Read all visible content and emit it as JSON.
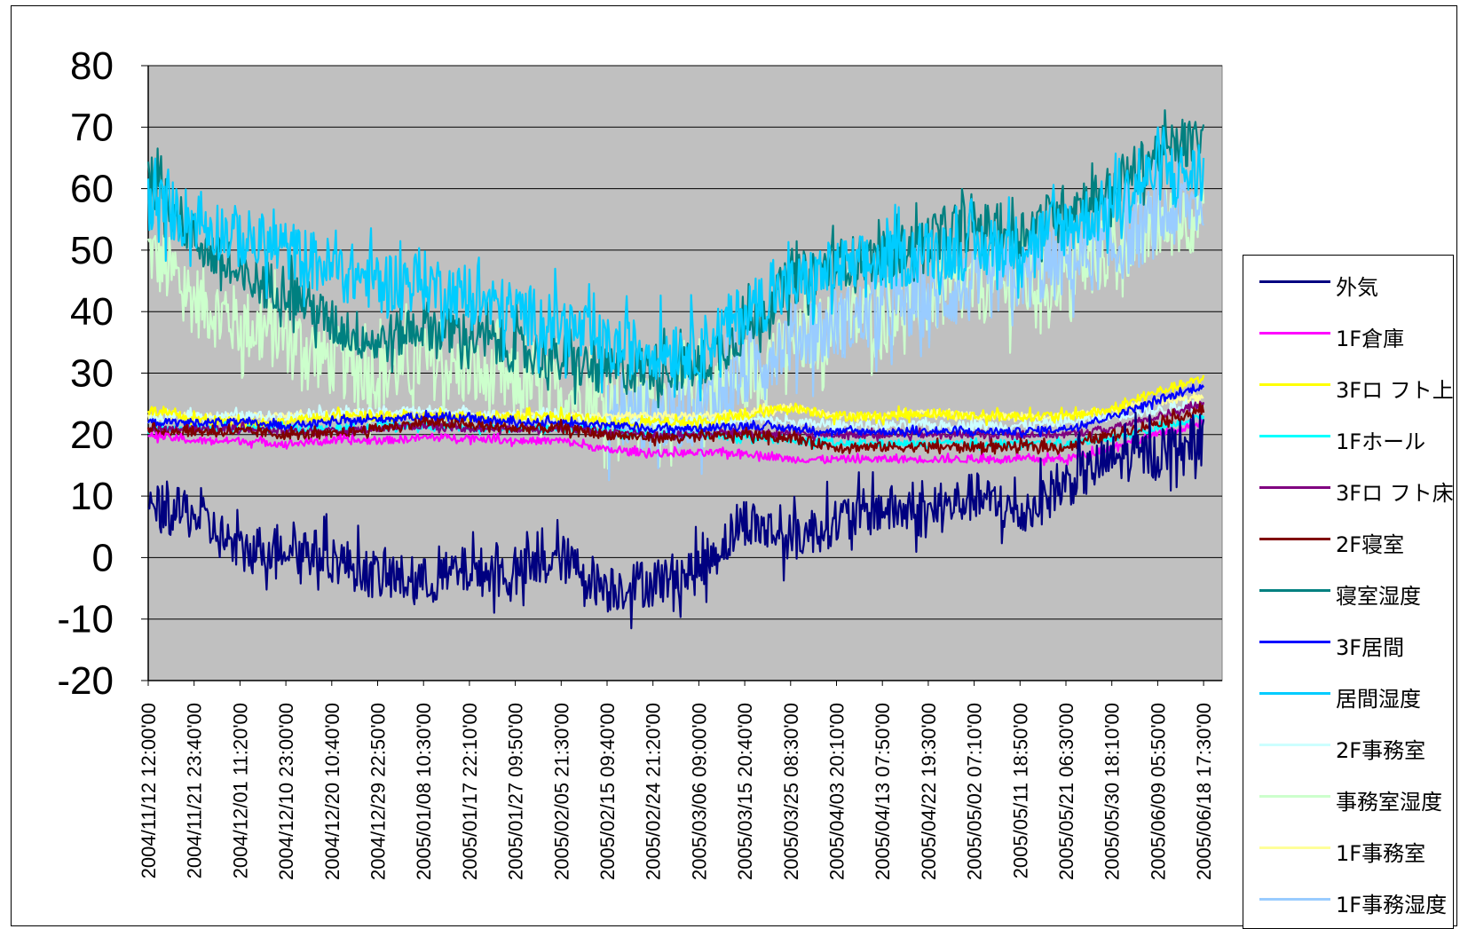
{
  "chart_data": {
    "type": "line",
    "title": "",
    "xlabel": "",
    "ylabel": "",
    "ylim": [
      -20,
      80
    ],
    "yticks": [
      80,
      70,
      60,
      50,
      40,
      30,
      20,
      10,
      0,
      -10,
      -20
    ],
    "grid": true,
    "legend_position": "right",
    "plot_background": "#c0c0c0",
    "x_tick_labels": [
      "2004/11/12 12:00'00",
      "2004/11/21 23:40'00",
      "2004/12/01 11:20'00",
      "2004/12/10 23:00'00",
      "2004/12/20 10:40'00",
      "2004/12/29 22:50'00",
      "2005/01/08 10:30'00",
      "2005/01/17 22:10'00",
      "2005/01/27 09:50'00",
      "2005/02/05 21:30'00",
      "2005/02/15 09:40'00",
      "2005/02/24 21:20'00",
      "2005/03/06 09:00'00",
      "2005/03/15 20:40'00",
      "2005/03/25 08:30'00",
      "2005/04/03 20:10'00",
      "2005/04/13 07:50'00",
      "2005/04/22 19:30'00",
      "2005/05/02 07:10'00",
      "2005/05/11 18:50'00",
      "2005/05/21 06:30'00",
      "2005/05/30 18:10'00",
      "2005/06/09 05:50'00",
      "2005/06/18 17:30'00"
    ],
    "series": [
      {
        "name": "外気",
        "color": "#000080",
        "noise": 4,
        "values": [
          8,
          7,
          1,
          2,
          0,
          -3,
          -4,
          -2,
          -3,
          0,
          -5,
          -4,
          -2,
          6,
          3,
          6,
          8,
          7,
          10,
          7,
          12,
          16,
          17,
          20
        ]
      },
      {
        "name": "1F倉庫",
        "color": "#ff00ff",
        "noise": 0.6,
        "values": [
          20,
          19,
          19,
          18.5,
          19,
          19,
          19.5,
          19.5,
          19,
          19,
          17.5,
          17,
          17,
          17,
          16,
          16,
          16,
          16,
          16,
          16,
          16,
          18,
          20,
          22
        ]
      },
      {
        "name": "3Fロフト上",
        "color": "#ffff00",
        "noise": 0.8,
        "values": [
          24,
          22.5,
          22,
          22,
          23,
          23,
          23,
          23,
          23,
          23,
          22,
          22,
          22,
          23,
          24.5,
          23,
          23,
          23.5,
          23,
          23,
          23,
          24,
          27,
          29
        ]
      },
      {
        "name": "1Fホール",
        "color": "#00ffff",
        "noise": 0.6,
        "values": [
          21,
          21,
          21,
          21,
          21,
          21.5,
          21.5,
          21,
          21,
          21,
          20.5,
          20,
          20,
          19.5,
          19,
          18.5,
          18.5,
          18.5,
          18.5,
          18.5,
          18.5,
          19.5,
          21,
          23
        ]
      },
      {
        "name": "3Fロフト床",
        "color": "#800080",
        "noise": 0.6,
        "values": [
          21,
          21,
          21,
          20.5,
          20.5,
          21,
          21.5,
          21,
          21,
          21,
          20.5,
          20,
          20,
          20.5,
          20,
          20,
          20,
          20,
          20,
          20,
          20,
          21,
          23,
          25
        ]
      },
      {
        "name": "2F寝室",
        "color": "#800000",
        "noise": 0.8,
        "values": [
          20.5,
          20.5,
          20.5,
          20,
          20,
          21,
          22,
          21.5,
          21,
          21,
          20,
          19.5,
          19.5,
          20,
          19.5,
          18,
          18,
          18,
          18,
          18,
          18,
          20,
          22,
          24
        ]
      },
      {
        "name": "寝室湿度",
        "color": "#008080",
        "noise": 4,
        "values": [
          62,
          52,
          45,
          44,
          38,
          35,
          38,
          36,
          34,
          32,
          30,
          31,
          31,
          37,
          45,
          48,
          49,
          52,
          54,
          53,
          57,
          60,
          66,
          68
        ]
      },
      {
        "name": "3F居間",
        "color": "#0000ff",
        "noise": 0.6,
        "values": [
          22,
          22,
          22,
          21.5,
          22,
          22.5,
          23,
          22.5,
          22,
          22,
          21.5,
          21,
          21,
          21.5,
          21,
          20.5,
          20.5,
          20.5,
          20.5,
          20.5,
          21,
          23,
          25.5,
          28
        ]
      },
      {
        "name": "居間湿度",
        "color": "#00ccff",
        "noise": 5,
        "values": [
          58,
          55,
          52,
          50,
          47,
          45,
          45,
          42,
          40,
          38,
          34,
          34,
          34,
          40,
          44,
          47,
          48,
          50,
          50,
          51,
          54,
          57,
          63,
          62
        ]
      },
      {
        "name": "2F事務室",
        "color": "#ccffff",
        "noise": 0.8,
        "values": [
          22.5,
          23,
          23,
          23,
          23.5,
          23.5,
          24,
          23.5,
          23,
          23,
          22,
          22,
          22,
          22.5,
          22,
          21.5,
          21.5,
          21.5,
          21.5,
          21.5,
          22,
          23,
          24,
          25
        ]
      },
      {
        "name": "事務室湿度",
        "color": "#ccffcc",
        "noise": 6,
        "values": [
          50,
          42,
          38,
          36,
          32,
          30,
          32,
          30,
          28,
          27,
          25,
          25,
          26,
          30,
          34,
          38,
          40,
          42,
          44,
          44,
          46,
          50,
          54,
          56
        ]
      },
      {
        "name": "1F事務室",
        "color": "#ffff99",
        "noise": 0.6,
        "values": [
          23,
          23,
          23,
          23,
          23,
          23,
          23,
          23,
          23,
          23,
          23,
          23,
          23,
          23.5,
          24.5,
          23,
          23,
          23.5,
          23,
          23,
          23,
          24,
          25.5,
          26
        ]
      },
      {
        "name": "1F事務湿度",
        "color": "#99ccff",
        "noise": 6,
        "values": [
          null,
          null,
          null,
          null,
          null,
          null,
          null,
          null,
          null,
          null,
          23,
          23,
          24,
          30,
          36,
          38,
          40,
          42,
          44,
          46,
          48,
          50,
          55,
          58
        ]
      }
    ]
  },
  "legend_items": [
    {
      "label": "外気",
      "color": "#000080"
    },
    {
      "label": "1F倉庫",
      "color": "#ff00ff"
    },
    {
      "label": "3Fロ フト上",
      "color": "#ffff00"
    },
    {
      "label": "1Fホール",
      "color": "#00ffff"
    },
    {
      "label": "3Fロ フト床",
      "color": "#800080"
    },
    {
      "label": "2F寝室",
      "color": "#800000"
    },
    {
      "label": "寝室湿度",
      "color": "#008080"
    },
    {
      "label": "3F居間",
      "color": "#0000ff"
    },
    {
      "label": "居間湿度",
      "color": "#00ccff"
    },
    {
      "label": "2F事務室",
      "color": "#ccffff"
    },
    {
      "label": "事務室湿度",
      "color": "#ccffcc"
    },
    {
      "label": "1F事務室",
      "color": "#ffff99"
    },
    {
      "label": "1F事務湿度",
      "color": "#99ccff"
    }
  ]
}
